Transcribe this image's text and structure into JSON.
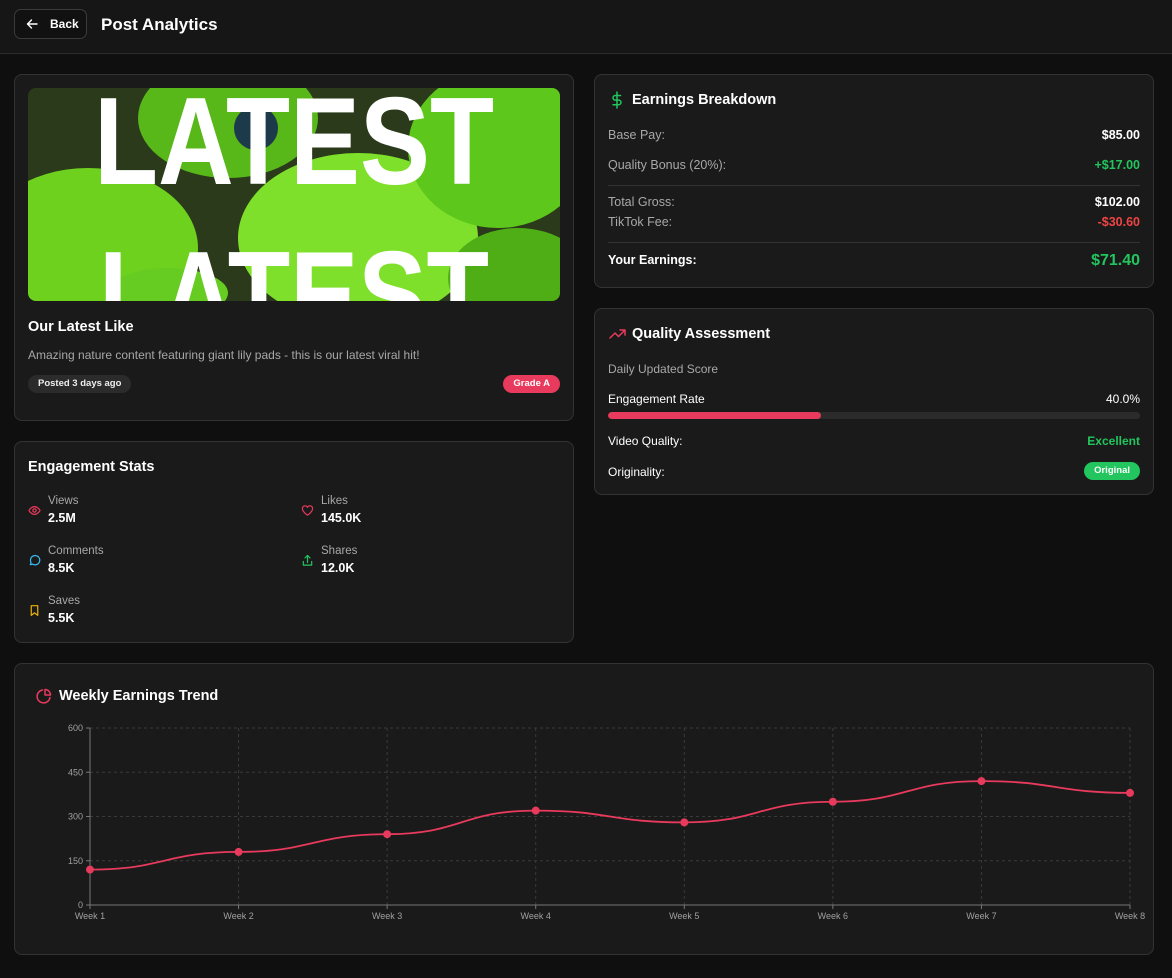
{
  "header": {
    "back_label": "Back",
    "title": "Post Analytics"
  },
  "post": {
    "thumbnail_text": "LATEST",
    "title": "Our Latest Like",
    "description": "Amazing nature content featuring giant lily pads - this is our latest viral hit!",
    "posted": "Posted 3 days ago",
    "grade": "Grade A"
  },
  "engagement": {
    "title": "Engagement Stats",
    "stats": [
      {
        "label": "Views",
        "value": "2.5M",
        "icon": "eye-icon",
        "color": "#e83a5c"
      },
      {
        "label": "Likes",
        "value": "145.0K",
        "icon": "heart-icon",
        "color": "#e83a5c"
      },
      {
        "label": "Comments",
        "value": "8.5K",
        "icon": "comment-icon",
        "color": "#38bdf8"
      },
      {
        "label": "Shares",
        "value": "12.0K",
        "icon": "share-icon",
        "color": "#22c55e"
      },
      {
        "label": "Saves",
        "value": "5.5K",
        "icon": "bookmark-icon",
        "color": "#eab308"
      }
    ]
  },
  "earnings": {
    "title": "Earnings Breakdown",
    "base_pay_label": "Base Pay:",
    "base_pay": "$85.00",
    "bonus_label": "Quality Bonus (20%):",
    "bonus": "+$17.00",
    "gross_label": "Total Gross:",
    "gross": "$102.00",
    "fee_label": "TikTok Fee:",
    "fee": "-$30.60",
    "yours_label": "Your Earnings:",
    "yours": "$71.40"
  },
  "quality": {
    "title": "Quality Assessment",
    "subtitle": "Daily Updated Score",
    "engagement_label": "Engagement Rate",
    "engagement_value": "40.0%",
    "engagement_fraction": 0.4,
    "video_quality_label": "Video Quality:",
    "video_quality": "Excellent",
    "originality_label": "Originality:",
    "originality": "Original"
  },
  "colors": {
    "accent": "#e83a5c",
    "positive": "#22c55e",
    "negative": "#ef4444"
  },
  "chart_title": "Weekly Earnings Trend",
  "chart_data": {
    "type": "line",
    "categories": [
      "Week 1",
      "Week 2",
      "Week 3",
      "Week 4",
      "Week 5",
      "Week 6",
      "Week 7",
      "Week 8"
    ],
    "values": [
      120,
      180,
      240,
      320,
      280,
      350,
      420,
      380
    ],
    "yticks": [
      0,
      150,
      300,
      450,
      600
    ],
    "ylim": [
      0,
      600
    ],
    "grid": true,
    "color": "#e83a5c"
  }
}
